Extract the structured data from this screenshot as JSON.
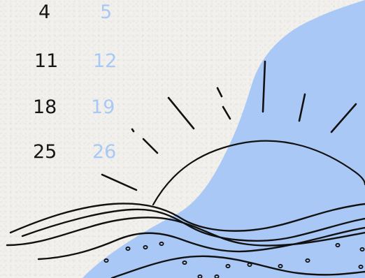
{
  "calendar": {
    "rows": [
      {
        "dark": "4",
        "blue": "5"
      },
      {
        "dark": "11",
        "blue": "12"
      },
      {
        "dark": "18",
        "blue": "19"
      },
      {
        "dark": "25",
        "blue": "26"
      }
    ]
  },
  "colors": {
    "background": "#f2f0ec",
    "blue_shape": "#a9c8f5",
    "dark_text": "#161616",
    "blue_text": "#a8c8f5",
    "line": "#111111"
  },
  "icons": {
    "sun": "sunrise-illustration",
    "waves": "wave-illustration",
    "blob": "blue-blob-shape"
  }
}
